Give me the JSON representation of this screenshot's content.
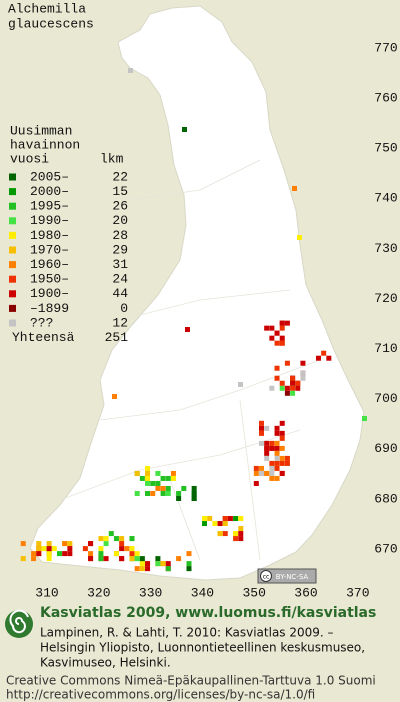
{
  "title": [
    "Alchemilla",
    "glaucescens"
  ],
  "legend": {
    "heading": [
      "Uusimman",
      "havainnon",
      "vuosi"
    ],
    "count_heading": "lkm",
    "items": [
      {
        "label": "2005–",
        "count": 22,
        "color": "#006400"
      },
      {
        "label": "2000–",
        "count": 15,
        "color": "#009a00"
      },
      {
        "label": "1995–",
        "count": 26,
        "color": "#22c022"
      },
      {
        "label": "1990–",
        "count": 20,
        "color": "#44e244"
      },
      {
        "label": "1980–",
        "count": 28,
        "color": "#ffee00"
      },
      {
        "label": "1970–",
        "count": 29,
        "color": "#f6c000"
      },
      {
        "label": "1960–",
        "count": 31,
        "color": "#ff8000"
      },
      {
        "label": "1950–",
        "count": 24,
        "color": "#ee3300"
      },
      {
        "label": "1900–",
        "count": 44,
        "color": "#cc0000"
      },
      {
        "label": "–1899",
        "count": 0,
        "color": "#880000"
      },
      {
        "label": "???",
        "count": 12,
        "color": "#c4c4c4"
      }
    ],
    "total_label": "Yhteensä",
    "total": 251
  },
  "map": {
    "xticks": [
      310,
      320,
      330,
      340,
      350,
      360,
      370
    ],
    "yticks": [
      670,
      680,
      690,
      700,
      710,
      720,
      730,
      740,
      750,
      760,
      770
    ],
    "badge": [
      "cc",
      "BY-NC-SA"
    ]
  },
  "footer": {
    "site": "Kasviatlas 2009, www.luomus.fi/kasviatlas",
    "citation": [
      "Lampinen, R. & Lahti, T. 2010: Kasviatlas 2009. –",
      "Helsingin Yliopisto, Luonnontieteellinen keskusmuseo,",
      "Kasvimuseo, Helsinki."
    ],
    "license": [
      "Creative Commons Nimeä-Epäkaupallinen-Tarttuva 1.0 Suomi",
      "http://creativecommons.org/licenses/by-nc-sa/1.0/fi"
    ]
  }
}
